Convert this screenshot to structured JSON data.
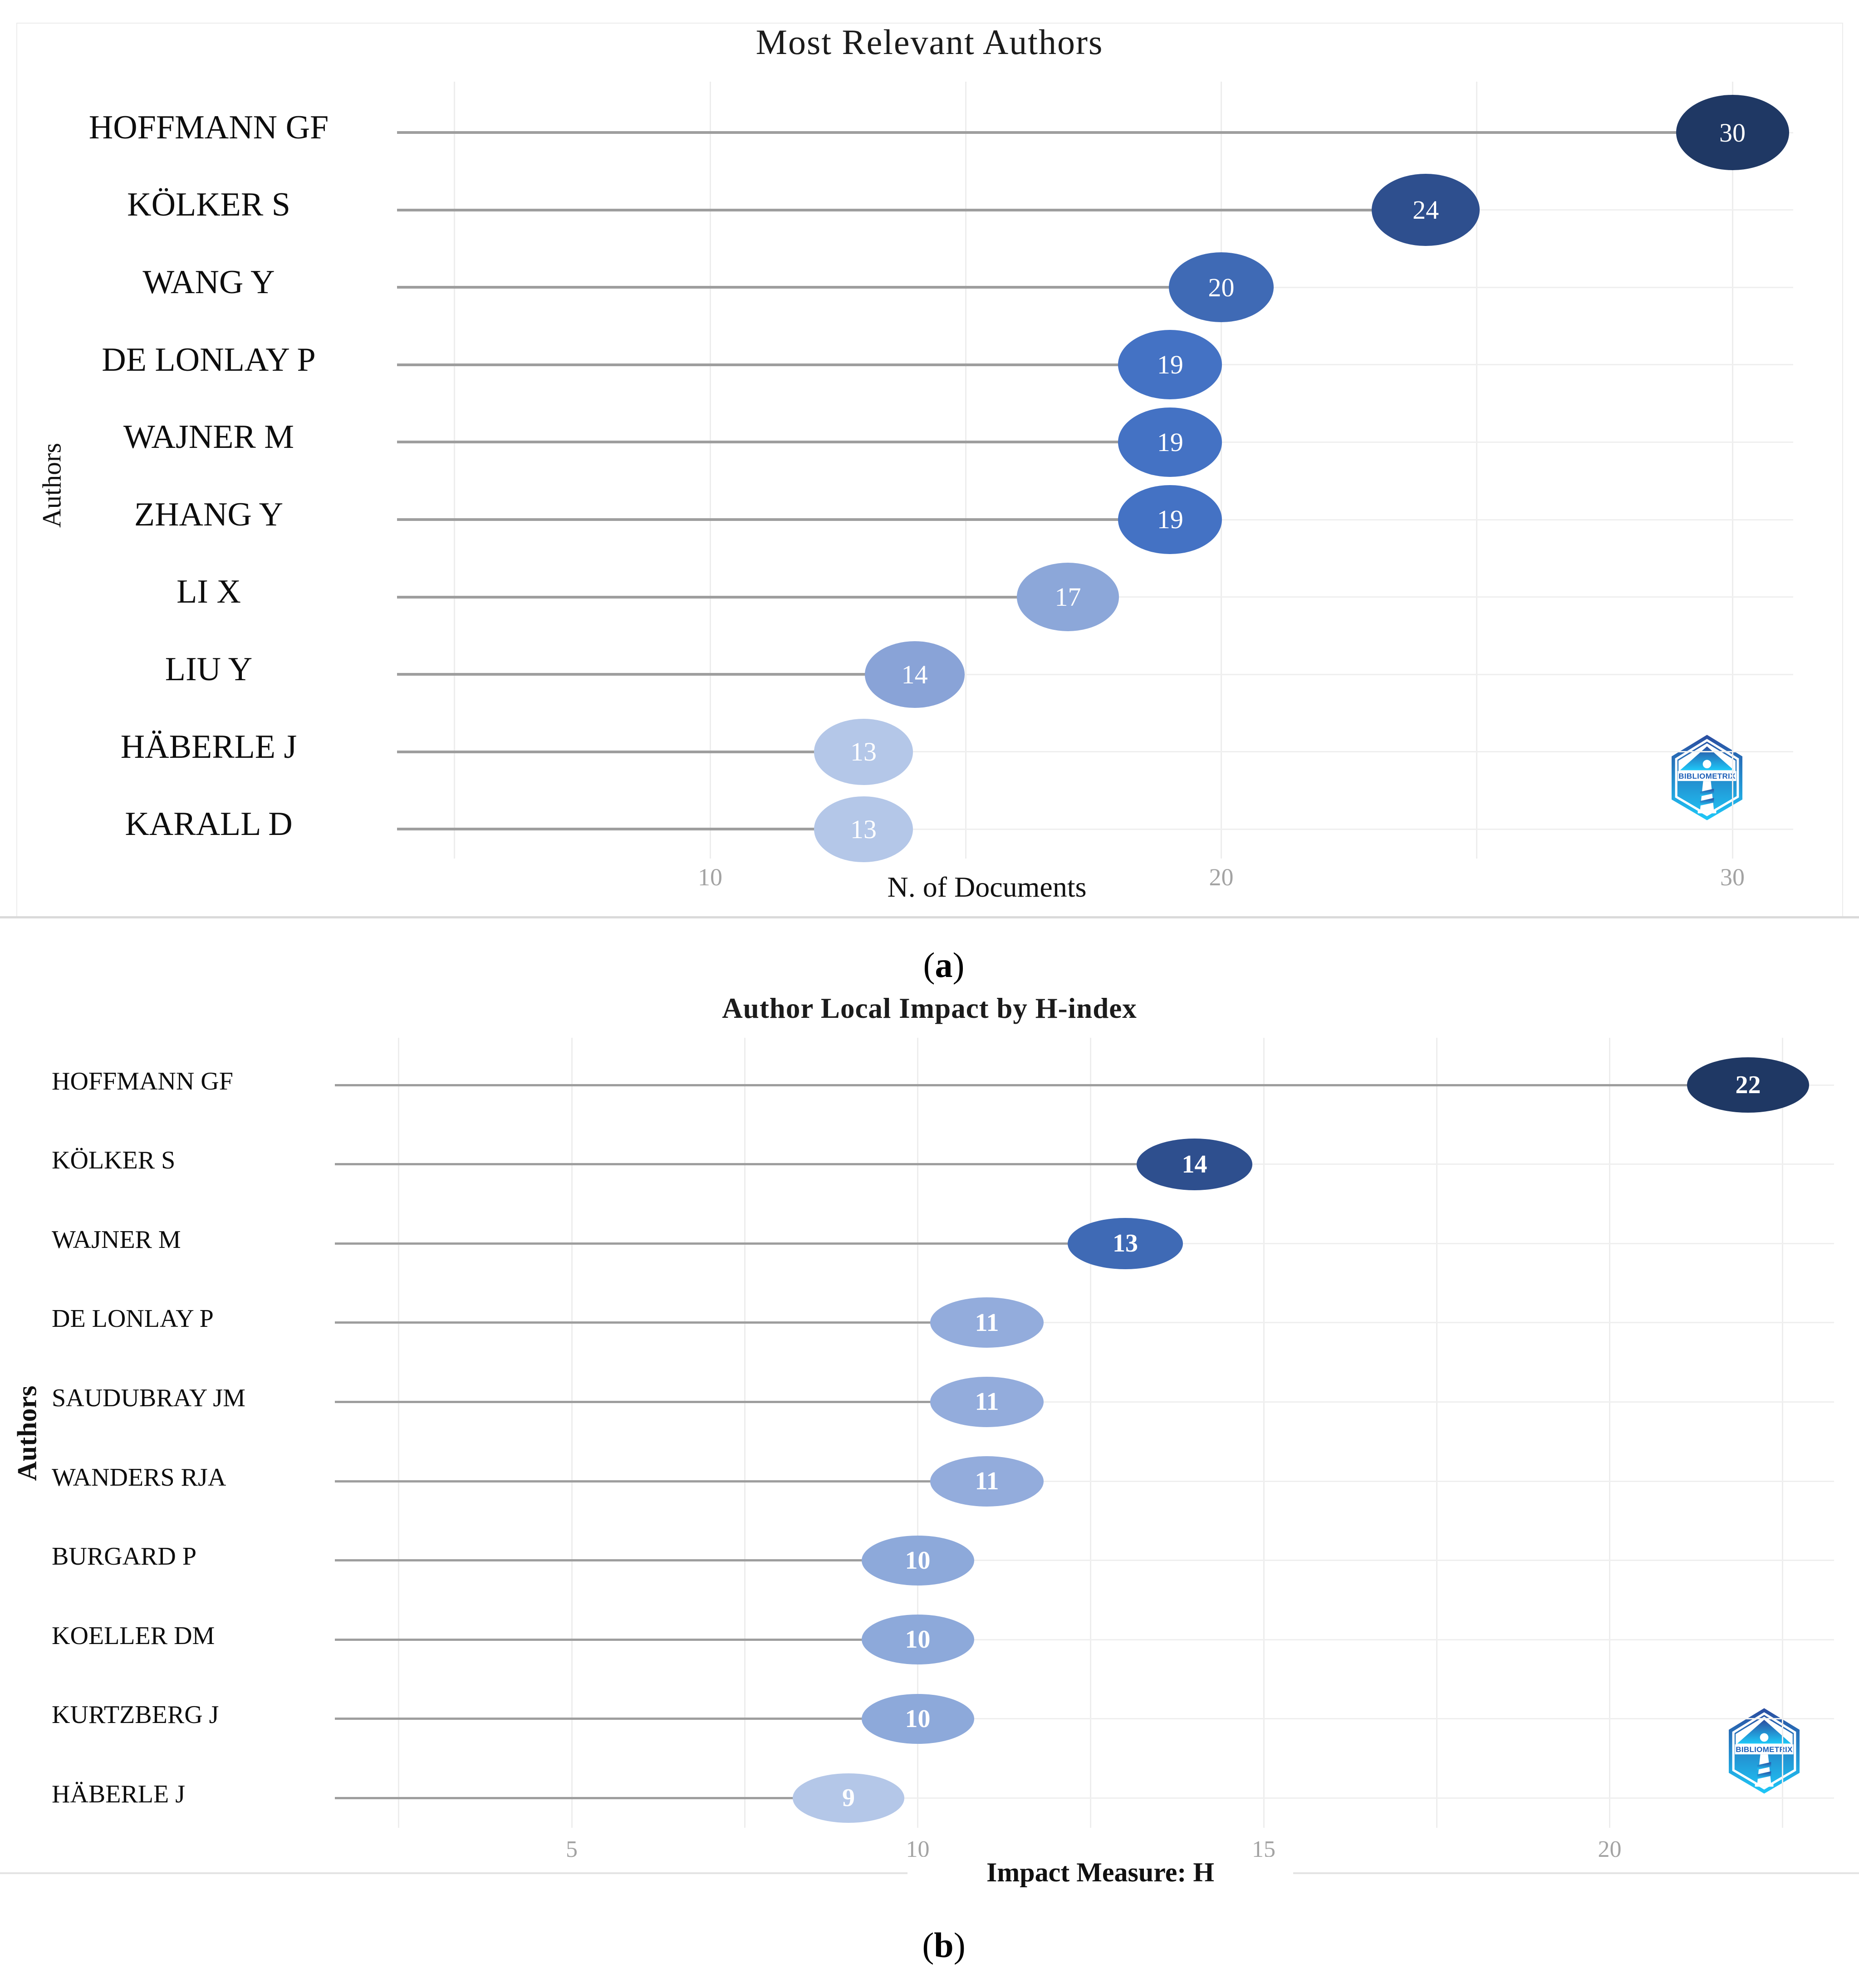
{
  "figure": {
    "caption_a": {
      "pre": "(",
      "label": "a",
      "post": ")"
    },
    "caption_b": {
      "pre": "(",
      "label": "b",
      "post": ")"
    }
  },
  "logo": {
    "text": "BIBLIOMETRIX",
    "gradient_top": "#2b4da0",
    "gradient_bottom": "#1ec8f8",
    "text_color": "#1d5fb8"
  },
  "chart_data": [
    {
      "type": "lollipop",
      "panel": "a",
      "title": "Most Relevant Authors",
      "xlabel": "N. of Documents",
      "ylabel": "Authors",
      "categories": [
        "HOFFMANN GF",
        "KÖLKER S",
        "WANG Y",
        "DE LONLAY P",
        "WAJNER M",
        "ZHANG Y",
        "LI X",
        "LIU Y",
        "HÄBERLE J",
        "KARALL D"
      ],
      "values": [
        30,
        24,
        20,
        19,
        19,
        19,
        17,
        14,
        13,
        13
      ],
      "point_colors": [
        "#1f3864",
        "#2e4f8e",
        "#3f6ab5",
        "#4472c4",
        "#4472c4",
        "#4472c4",
        "#8ca7d9",
        "#89a3d7",
        "#b4c7e8",
        "#b4c7e8"
      ],
      "x_ticks": [
        10,
        20,
        30
      ],
      "x_gridlines": [
        5,
        10,
        15,
        20,
        25,
        30
      ],
      "xlim": [
        4.4,
        31.2
      ],
      "grid": true,
      "legend": "none"
    },
    {
      "type": "lollipop",
      "panel": "b",
      "title": "Author Local Impact by H-index",
      "xlabel": "Impact Measure: H",
      "ylabel": "Authors",
      "categories": [
        "HOFFMANN GF",
        "KÖLKER S",
        "WAJNER M",
        "DE LONLAY P",
        "SAUDUBRAY JM",
        "WANDERS RJA",
        "BURGARD P",
        "KOELLER DM",
        "KURTZBERG J",
        "HÄBERLE J"
      ],
      "values": [
        22,
        14,
        13,
        11,
        11,
        11,
        10,
        10,
        10,
        9
      ],
      "point_colors": [
        "#1f3864",
        "#2e4f8e",
        "#3f6ab5",
        "#93acdc",
        "#93acdc",
        "#93acdc",
        "#8da9da",
        "#8da9da",
        "#8da9da",
        "#b4c7e8"
      ],
      "x_ticks": [
        5,
        10,
        15,
        20
      ],
      "x_gridlines": [
        2.5,
        5,
        7.5,
        10,
        12.5,
        15,
        17.5,
        20,
        22.5
      ],
      "xlim": [
        1.6,
        23.4
      ],
      "grid": true,
      "legend": "none"
    }
  ]
}
